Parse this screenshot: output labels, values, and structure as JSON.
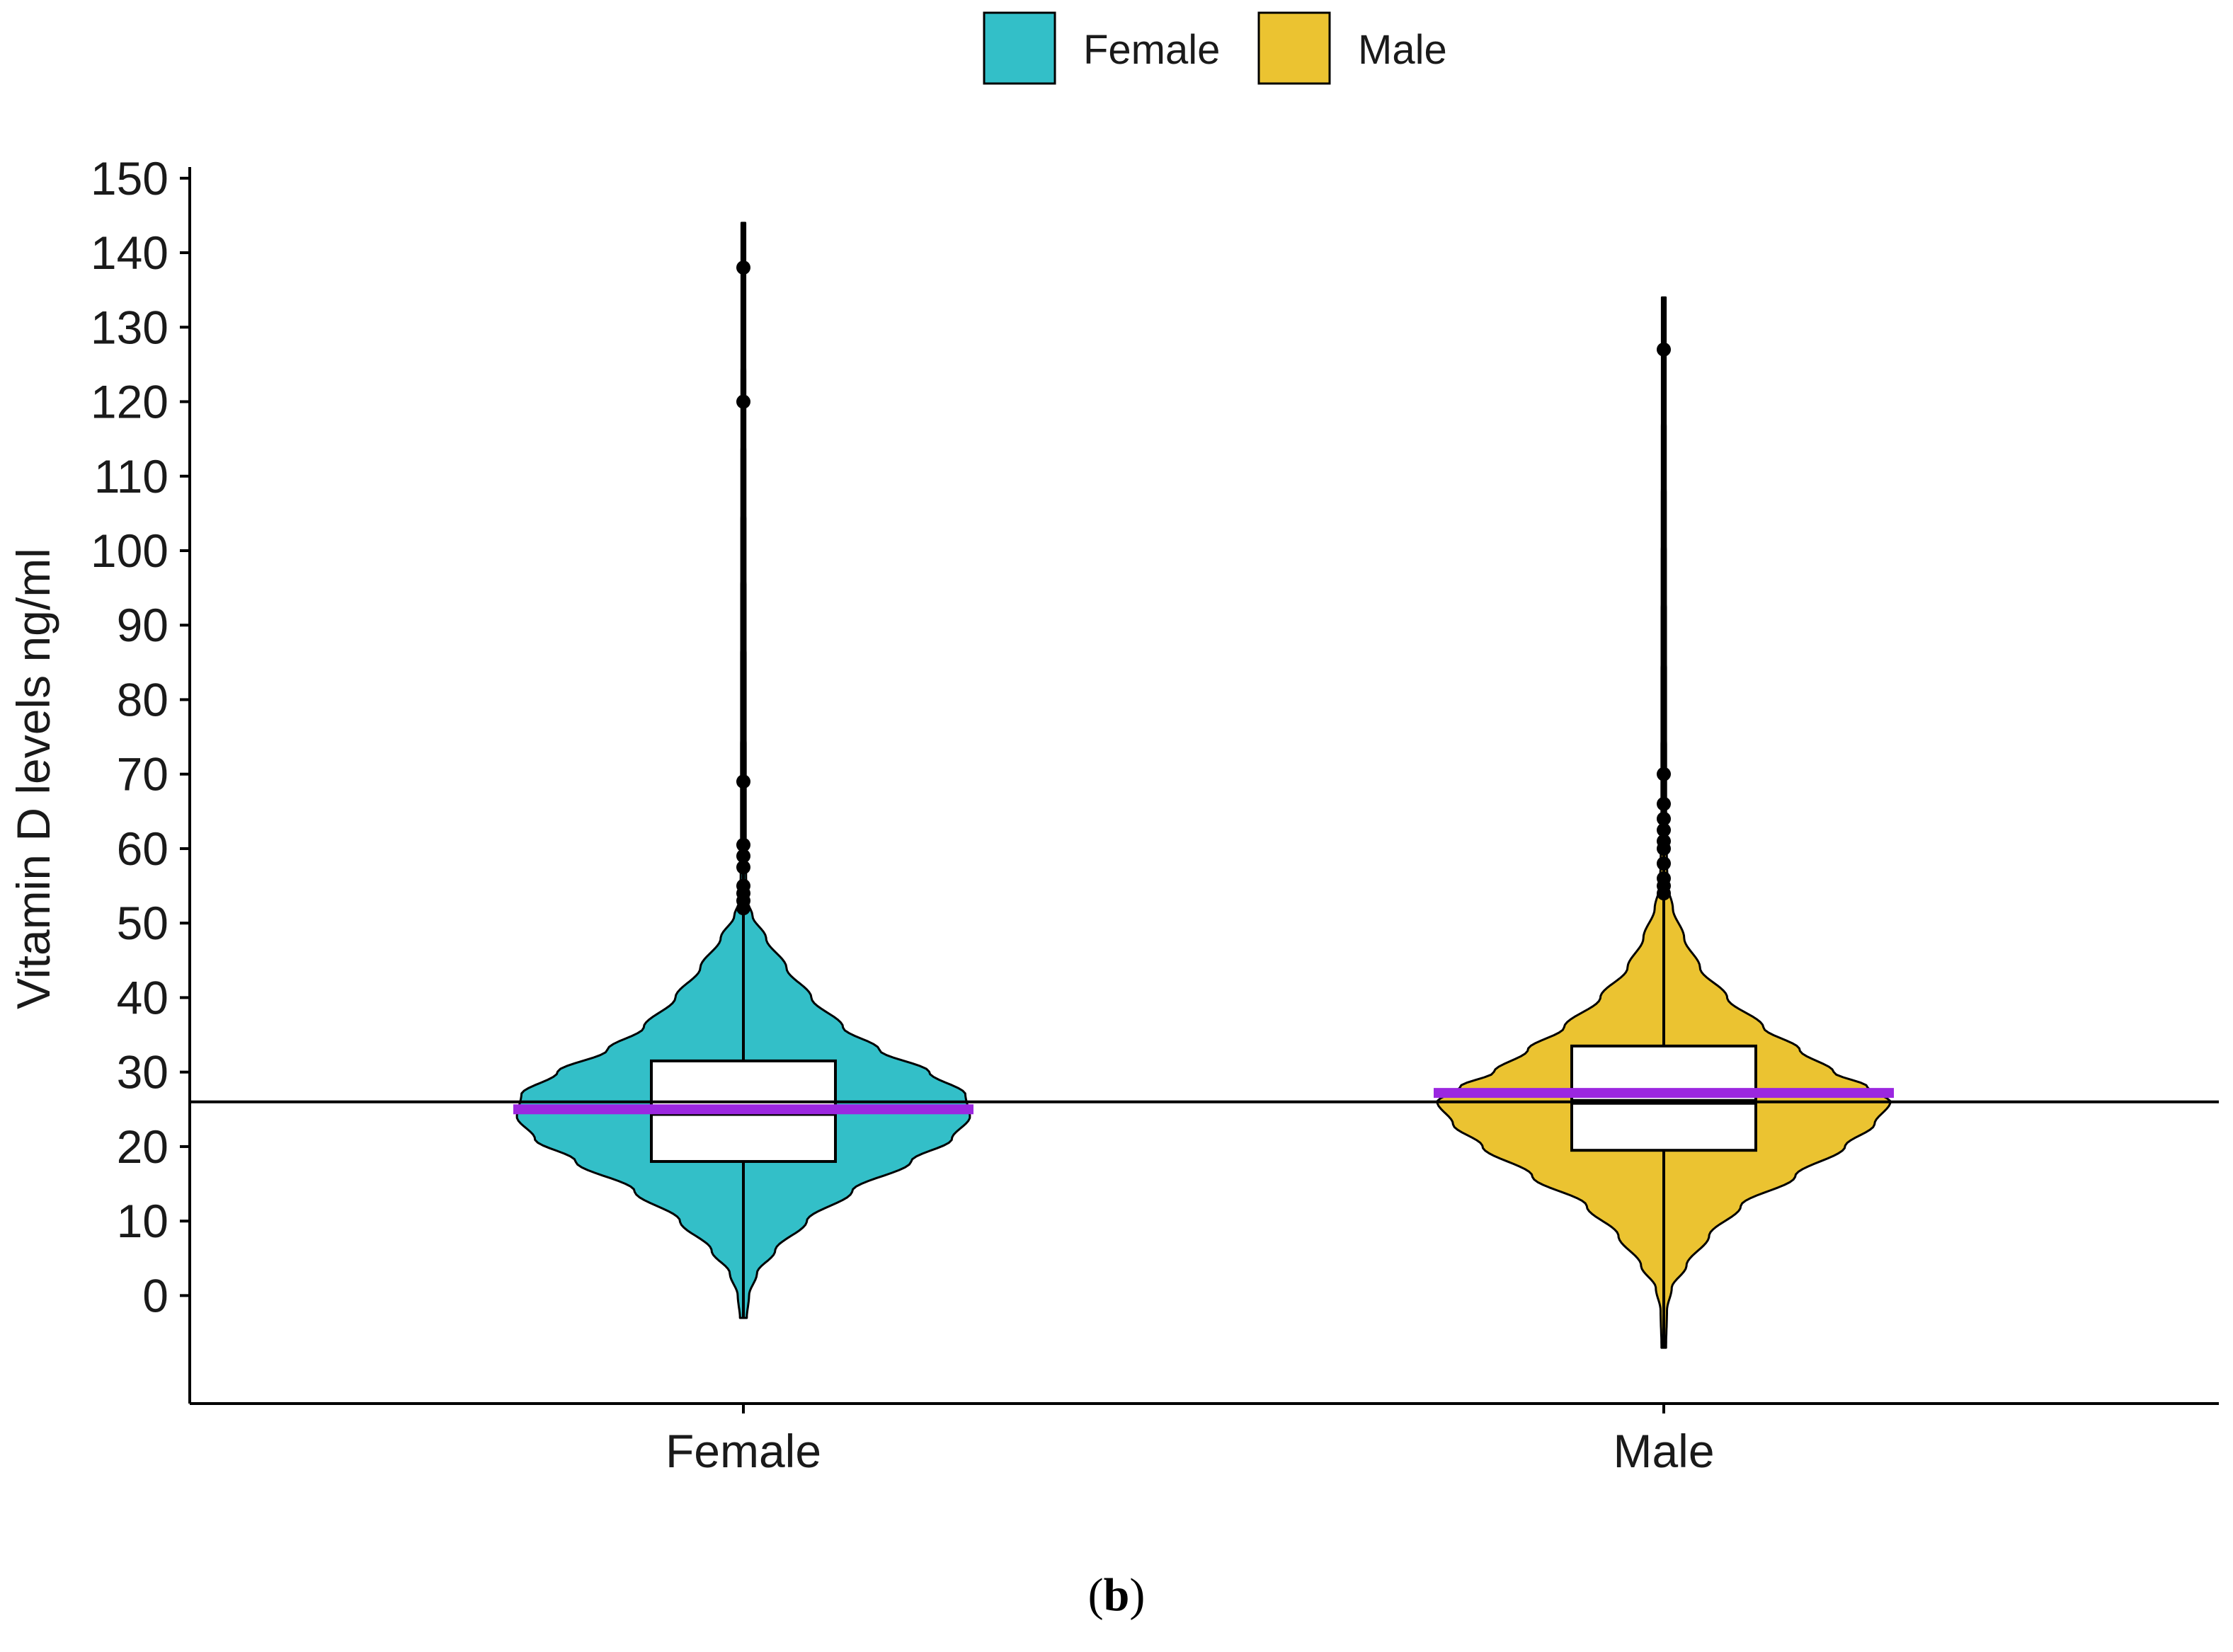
{
  "chart_data": {
    "type": "violin",
    "title": "",
    "xlabel": "",
    "ylabel": "Vitamin D levels ng/ml",
    "ylim": [
      -14.5,
      151.5
    ],
    "yticks": [
      0,
      10,
      20,
      30,
      40,
      50,
      60,
      70,
      80,
      90,
      100,
      110,
      120,
      130,
      140,
      150
    ],
    "categories": [
      "Female",
      "Male"
    ],
    "legend": {
      "position": "top",
      "entries": [
        {
          "label": "Female",
          "color": "#33bfc8"
        },
        {
          "label": "Male",
          "color": "#ebc331"
        }
      ]
    },
    "reference_line": 26,
    "mean_color": "#9b27e0",
    "series": [
      {
        "name": "Female",
        "color": "#33bfc8",
        "box": {
          "q1": 18,
          "median": 24.5,
          "q3": 31.5,
          "whisker_low": 3,
          "whisker_high": 52
        },
        "mean": 25,
        "range": [
          -3,
          144
        ],
        "outliers": [
          52,
          53,
          54,
          55,
          57.5,
          59,
          60.5,
          69,
          120,
          138
        ],
        "density": [
          [
            -3,
            0.015
          ],
          [
            0,
            0.025
          ],
          [
            3,
            0.06
          ],
          [
            6,
            0.14
          ],
          [
            10,
            0.28
          ],
          [
            14,
            0.48
          ],
          [
            18,
            0.74
          ],
          [
            21,
            0.92
          ],
          [
            24,
            1.0
          ],
          [
            27,
            0.98
          ],
          [
            30,
            0.82
          ],
          [
            33,
            0.6
          ],
          [
            36,
            0.44
          ],
          [
            40,
            0.3
          ],
          [
            44,
            0.19
          ],
          [
            48,
            0.1
          ],
          [
            51,
            0.04
          ],
          [
            53,
            0.018
          ],
          [
            56,
            0.012
          ],
          [
            60,
            0.01
          ],
          [
            144,
            0.008
          ]
        ]
      },
      {
        "name": "Male",
        "color": "#ebc331",
        "box": {
          "q1": 19.5,
          "median": 26,
          "q3": 33.5,
          "whisker_low": 1,
          "whisker_high": 56
        },
        "mean": 27.2,
        "range": [
          -7,
          134
        ],
        "outliers": [
          54,
          55,
          56,
          58,
          60,
          61,
          62.5,
          64,
          66,
          70,
          127
        ],
        "density": [
          [
            -7,
            0.01
          ],
          [
            -2,
            0.014
          ],
          [
            1,
            0.035
          ],
          [
            4,
            0.1
          ],
          [
            8,
            0.2
          ],
          [
            12,
            0.34
          ],
          [
            16,
            0.58
          ],
          [
            20,
            0.8
          ],
          [
            23,
            0.93
          ],
          [
            26,
            1.0
          ],
          [
            28,
            0.9
          ],
          [
            30,
            0.75
          ],
          [
            33,
            0.6
          ],
          [
            36,
            0.44
          ],
          [
            40,
            0.28
          ],
          [
            44,
            0.16
          ],
          [
            48,
            0.09
          ],
          [
            52,
            0.04
          ],
          [
            55,
            0.018
          ],
          [
            58,
            0.014
          ],
          [
            62,
            0.01
          ],
          [
            134,
            0.008
          ]
        ]
      }
    ]
  },
  "caption": {
    "open": "(",
    "bold": "b",
    "close": ")"
  }
}
